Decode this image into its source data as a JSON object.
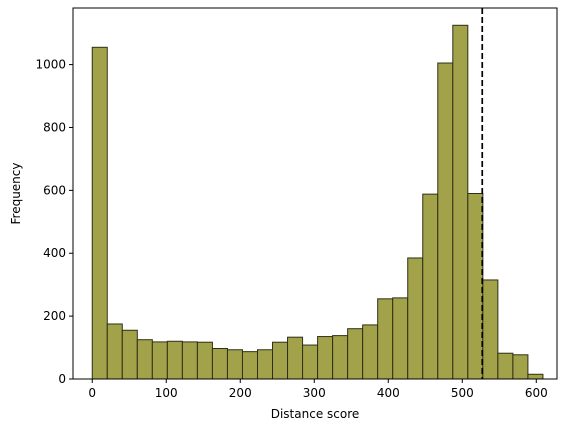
{
  "chart_data": {
    "type": "histogram",
    "xlabel": "Distance score",
    "ylabel": "Frequency",
    "xlim": [
      -26,
      628
    ],
    "ylim": [
      0,
      1180
    ],
    "xticks": [
      0,
      100,
      200,
      300,
      400,
      500,
      600
    ],
    "yticks": [
      0,
      200,
      400,
      600,
      800,
      1000
    ],
    "bin_width": 20.3,
    "bin_start": 0,
    "bar_color": "#a2a24a",
    "edge_color": "#2f2f16",
    "counts": [
      1055,
      175,
      155,
      125,
      118,
      120,
      118,
      117,
      97,
      93,
      87,
      93,
      117,
      133,
      108,
      135,
      138,
      160,
      172,
      255,
      258,
      385,
      588,
      1005,
      1125,
      590,
      315,
      82,
      77,
      15
    ],
    "threshold_line": {
      "x": 527,
      "style": "dashed",
      "color": "#000000"
    }
  }
}
